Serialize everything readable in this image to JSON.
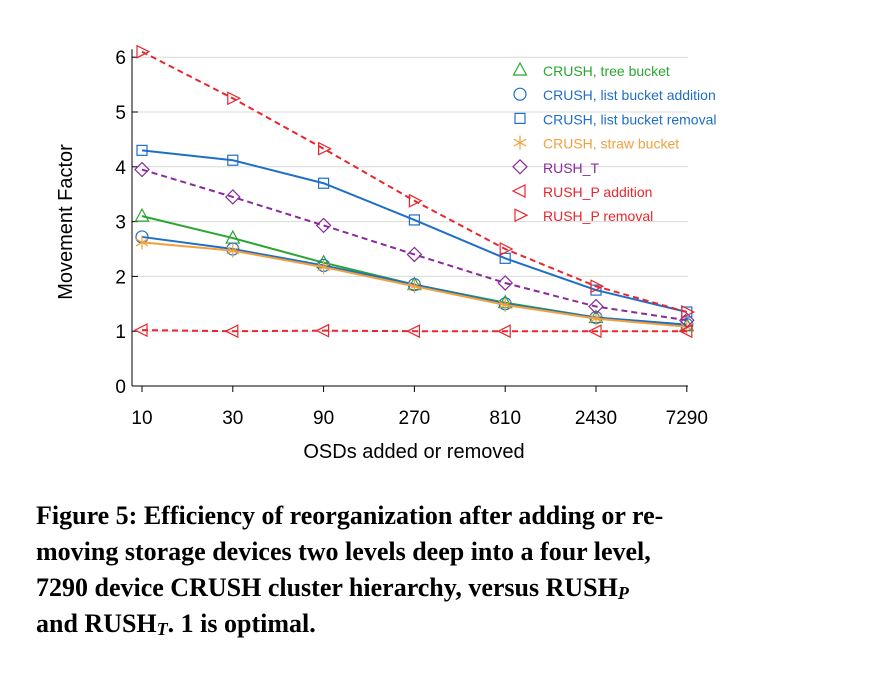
{
  "chart_data": {
    "type": "line",
    "xlabel": "OSDs added or removed",
    "ylabel": "Movement Factor",
    "categories": [
      "10",
      "30",
      "90",
      "270",
      "810",
      "2430",
      "7290"
    ],
    "ylim": [
      0,
      6
    ],
    "yticks": [
      "0",
      "1",
      "2",
      "3",
      "4",
      "5",
      "6"
    ],
    "grid": "horizontal",
    "legend_position": "top-right",
    "series": [
      {
        "name": "CRUSH, tree bucket",
        "color": "#2aa630",
        "marker": "triangle-up",
        "dashed": false,
        "values": [
          3.1,
          2.7,
          2.25,
          1.85,
          1.52,
          1.25,
          1.1
        ]
      },
      {
        "name": "CRUSH, list bucket addition",
        "color": "#1f6ec8",
        "marker": "circle",
        "dashed": false,
        "values": [
          2.72,
          2.5,
          2.2,
          1.85,
          1.5,
          1.25,
          1.12
        ]
      },
      {
        "name": "CRUSH, list bucket removal",
        "color": "#1f6ec8",
        "marker": "square",
        "dashed": false,
        "values": [
          4.3,
          4.12,
          3.7,
          3.03,
          2.33,
          1.75,
          1.35
        ]
      },
      {
        "name": "CRUSH, straw bucket",
        "color": "#f2a03d",
        "marker": "star",
        "dashed": false,
        "values": [
          2.62,
          2.47,
          2.17,
          1.82,
          1.48,
          1.23,
          1.08
        ]
      },
      {
        "name": "RUSH_T",
        "color": "#8b2a9c",
        "marker": "diamond",
        "dashed": true,
        "values": [
          3.95,
          3.45,
          2.93,
          2.4,
          1.88,
          1.45,
          1.2
        ]
      },
      {
        "name": "RUSH_P addition",
        "color": "#e8262e",
        "marker": "triangle-left",
        "dashed": true,
        "values": [
          1.02,
          1.0,
          1.01,
          1.0,
          1.0,
          1.0,
          1.0
        ]
      },
      {
        "name": "RUSH_P removal",
        "color": "#e8262e",
        "marker": "triangle-right",
        "dashed": true,
        "values": [
          6.1,
          5.25,
          4.33,
          3.38,
          2.5,
          1.82,
          1.35
        ]
      }
    ]
  },
  "caption": {
    "line1": "Figure 5: Efficiency of reorganization after adding or re-",
    "line2": "moving storage devices two levels deep into a four level,",
    "line3_a": "7290 device CRUSH cluster hierarchy, versus RUSH",
    "line3_sub": "P",
    "line4_a": "and RUSH",
    "line4_sub": "T",
    "line4_b": ". 1 is optimal."
  }
}
